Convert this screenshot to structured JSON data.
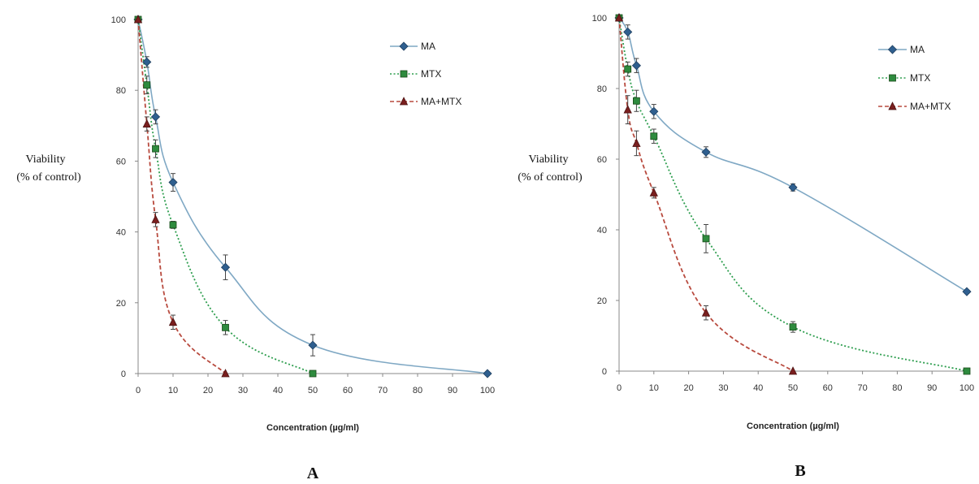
{
  "chart_data": [
    {
      "type": "line",
      "panel_label": "A",
      "xlabel": "Concentration (µg/ml)",
      "ylabel": [
        "Viability",
        "(% of control)"
      ],
      "xlim": [
        0,
        100
      ],
      "ylim": [
        0,
        100
      ],
      "xticks": [
        0,
        10,
        20,
        30,
        40,
        50,
        60,
        70,
        80,
        90,
        100
      ],
      "yticks": [
        0,
        20,
        40,
        60,
        80,
        100
      ],
      "grid": false,
      "legend_position": "top-right",
      "series": [
        {
          "name": "MA",
          "color": "#7fa8c4",
          "marker": "diamond",
          "marker_color": "#2f5f8f",
          "line": "solid",
          "x": [
            0,
            2.5,
            5,
            10,
            25,
            50,
            100
          ],
          "y": [
            100,
            88,
            72.5,
            54,
            30,
            8,
            0
          ],
          "err": [
            0,
            1.5,
            2,
            2.5,
            3.5,
            3,
            0
          ]
        },
        {
          "name": "MTX",
          "color": "#2e9e4f",
          "marker": "square",
          "marker_color": "#2e8b3e",
          "line": "dotted",
          "x": [
            0,
            2.5,
            5,
            10,
            25,
            50
          ],
          "y": [
            100,
            81.5,
            63.5,
            42,
            13,
            0
          ],
          "err": [
            0,
            2.5,
            2.5,
            1,
            2,
            0
          ]
        },
        {
          "name": "MA+MTX",
          "color": "#b84a3e",
          "marker": "triangle",
          "marker_color": "#7a1f1f",
          "line": "dashed",
          "x": [
            0,
            2.5,
            5,
            10,
            25
          ],
          "y": [
            100,
            70.5,
            43.5,
            14.5,
            0
          ],
          "err": [
            0,
            2,
            2,
            2,
            0
          ]
        }
      ]
    },
    {
      "type": "line",
      "panel_label": "B",
      "xlabel": "Concentration (µg/ml)",
      "ylabel": [
        "Viability",
        "(% of control)"
      ],
      "xlim": [
        0,
        100
      ],
      "ylim": [
        0,
        100
      ],
      "xticks": [
        0,
        10,
        20,
        30,
        40,
        50,
        60,
        70,
        80,
        90,
        100
      ],
      "yticks": [
        0,
        20,
        40,
        60,
        80,
        100
      ],
      "grid": false,
      "legend_position": "top-right",
      "series": [
        {
          "name": "MA",
          "color": "#7fa8c4",
          "marker": "diamond",
          "marker_color": "#2f5f8f",
          "line": "solid",
          "x": [
            0,
            2.5,
            5,
            10,
            25,
            50,
            100
          ],
          "y": [
            100,
            96,
            86.5,
            73.5,
            62,
            52,
            22.5
          ],
          "err": [
            0,
            2,
            2,
            2,
            1.5,
            1,
            0.5
          ]
        },
        {
          "name": "MTX",
          "color": "#2e9e4f",
          "marker": "square",
          "marker_color": "#2e8b3e",
          "line": "dotted",
          "x": [
            0,
            2.5,
            5,
            10,
            25,
            50,
            100
          ],
          "y": [
            100,
            85.5,
            76.5,
            66.5,
            37.5,
            12.5,
            0
          ],
          "err": [
            0,
            2,
            3,
            2,
            4,
            1.5,
            0
          ]
        },
        {
          "name": "MA+MTX",
          "color": "#b84a3e",
          "marker": "triangle",
          "marker_color": "#7a1f1f",
          "line": "dashed",
          "x": [
            0,
            2.5,
            5,
            10,
            25,
            50
          ],
          "y": [
            100,
            74,
            64.5,
            50.5,
            16.5,
            0
          ],
          "err": [
            0,
            4,
            3.5,
            1.5,
            2,
            0
          ]
        }
      ]
    }
  ]
}
